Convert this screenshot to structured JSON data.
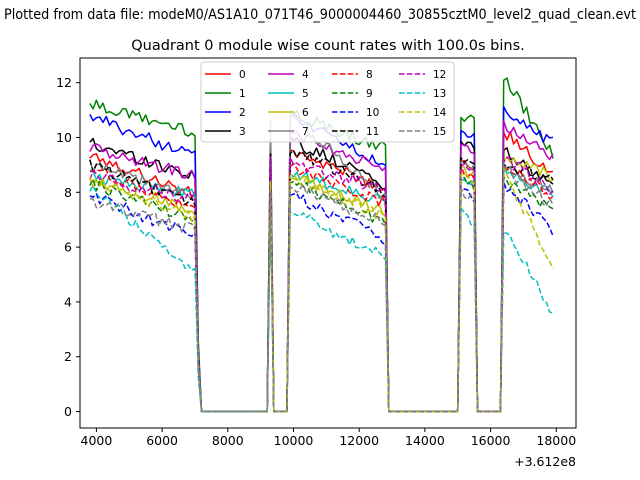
{
  "chart_data": {
    "type": "line",
    "suptitle": "Plotted from data file: modeM0/AS1A10_071T46_9000004460_30855cztM0_level2_quad_clean.evt",
    "title": "Quadrant 0 module wise count rates with 100.0s bins.",
    "xlabel": "",
    "ylabel": "",
    "x_offset_label": "+3.612e8",
    "xlim": [
      3500,
      18600
    ],
    "ylim": [
      -0.6,
      12.9
    ],
    "x_ticks": [
      4000,
      6000,
      8000,
      10000,
      12000,
      14000,
      16000,
      18000
    ],
    "x_tick_labels": [
      "4000",
      "6000",
      "8000",
      "10000",
      "12000",
      "14000",
      "16000",
      "18000"
    ],
    "y_ticks": [
      0,
      2,
      4,
      6,
      8,
      10,
      12
    ],
    "y_tick_labels": [
      "0",
      "2",
      "4",
      "6",
      "8",
      "10",
      "12"
    ],
    "legend_position": "upper-center",
    "segments": [
      {
        "start": 3800,
        "end": 7000
      },
      {
        "start": 9300,
        "end": 9300
      },
      {
        "start": 9900,
        "end": 12800
      },
      {
        "start": 15100,
        "end": 15500
      },
      {
        "start": 16400,
        "end": 17900
      }
    ],
    "zero_intervals": [
      [
        7200,
        9200
      ],
      [
        9500,
        9800
      ],
      [
        12900,
        15000
      ],
      [
        15600,
        16300
      ]
    ],
    "series": [
      {
        "name": "0",
        "color": "#ff0000",
        "dash": "solid",
        "levels": {
          "seg1": [
            9.4,
            7.9
          ],
          "spike": 9.6,
          "seg2": [
            9.4,
            8.2
          ],
          "seg3": [
            9.2,
            8.9
          ],
          "seg4": [
            10.2,
            8.6
          ]
        }
      },
      {
        "name": "1",
        "color": "#008000",
        "dash": "solid",
        "levels": {
          "seg1": [
            11.2,
            10.2
          ],
          "spike": 10.5,
          "seg2": [
            10.9,
            9.6
          ],
          "seg3": [
            10.8,
            10.6
          ],
          "seg4": [
            12.3,
            9.3
          ]
        }
      },
      {
        "name": "2",
        "color": "#0000ff",
        "dash": "solid",
        "levels": {
          "seg1": [
            10.8,
            9.3
          ],
          "spike": 10.0,
          "seg2": [
            10.8,
            9.0
          ],
          "seg3": [
            10.2,
            10.0
          ],
          "seg4": [
            10.9,
            9.8
          ]
        }
      },
      {
        "name": "3",
        "color": "#000000",
        "dash": "solid",
        "levels": {
          "seg1": [
            9.8,
            8.6
          ],
          "spike": 9.8,
          "seg2": [
            9.9,
            8.3
          ],
          "seg3": [
            9.8,
            9.6
          ],
          "seg4": [
            9.5,
            8.2
          ]
        }
      },
      {
        "name": "4",
        "color": "#bf00bf",
        "dash": "solid",
        "levels": {
          "seg1": [
            9.6,
            8.6
          ],
          "spike": 9.7,
          "seg2": [
            10.2,
            8.8
          ],
          "seg3": [
            9.9,
            9.4
          ],
          "seg4": [
            10.5,
            9.2
          ]
        }
      },
      {
        "name": "5",
        "color": "#00bfbf",
        "dash": "solid",
        "levels": {
          "seg1": [
            8.6,
            7.9
          ],
          "spike": 9.6,
          "seg2": [
            8.7,
            7.7
          ],
          "seg3": [
            8.5,
            8.4
          ],
          "seg4": [
            8.8,
            7.9
          ]
        }
      },
      {
        "name": "6",
        "color": "#bfbf00",
        "dash": "solid",
        "levels": {
          "seg1": [
            8.4,
            7.4
          ],
          "spike": 9.3,
          "seg2": [
            8.6,
            7.3
          ],
          "seg3": [
            8.8,
            8.6
          ],
          "seg4": [
            9.2,
            8.6
          ]
        }
      },
      {
        "name": "7",
        "color": "#808080",
        "dash": "solid",
        "levels": {
          "seg1": [
            9.0,
            7.8
          ],
          "spike": 10.6,
          "seg2": [
            10.8,
            7.8
          ],
          "seg3": [
            9.0,
            8.9
          ],
          "seg4": [
            9.0,
            8.0
          ]
        }
      },
      {
        "name": "8",
        "color": "#ff0000",
        "dash": "dashed",
        "levels": {
          "seg1": [
            8.9,
            7.3
          ],
          "spike": 8.7,
          "seg2": [
            8.9,
            7.6
          ],
          "seg3": [
            8.9,
            8.4
          ],
          "seg4": [
            9.0,
            7.9
          ]
        }
      },
      {
        "name": "9",
        "color": "#008000",
        "dash": "dashed",
        "levels": {
          "seg1": [
            8.3,
            7.0
          ],
          "spike": 8.4,
          "seg2": [
            8.4,
            6.9
          ],
          "seg3": [
            8.5,
            8.2
          ],
          "seg4": [
            8.4,
            7.4
          ]
        }
      },
      {
        "name": "10",
        "color": "#0000ff",
        "dash": "dashed",
        "levels": {
          "seg1": [
            7.9,
            6.4
          ],
          "spike": 8.2,
          "seg2": [
            7.9,
            6.3
          ],
          "seg3": [
            8.1,
            7.8
          ],
          "seg4": [
            8.3,
            6.6
          ]
        }
      },
      {
        "name": "11",
        "color": "#000000",
        "dash": "dashed",
        "levels": {
          "seg1": [
            9.0,
            7.6
          ],
          "spike": 9.4,
          "seg2": [
            9.6,
            8.0
          ],
          "seg3": [
            9.3,
            9.1
          ],
          "seg4": [
            9.1,
            8.4
          ]
        }
      },
      {
        "name": "12",
        "color": "#bf00bf",
        "dash": "dashed",
        "levels": {
          "seg1": [
            8.6,
            7.7
          ],
          "spike": 9.3,
          "seg2": [
            9.1,
            8.1
          ],
          "seg3": [
            9.1,
            8.7
          ],
          "seg4": [
            9.3,
            8.0
          ]
        }
      },
      {
        "name": "13",
        "color": "#00bfbf",
        "dash": "dashed",
        "levels": {
          "seg1": [
            8.2,
            5.0
          ],
          "spike": 7.6,
          "seg2": [
            7.3,
            5.7
          ],
          "seg3": [
            7.3,
            6.8
          ],
          "seg4": [
            6.7,
            3.6
          ]
        }
      },
      {
        "name": "14",
        "color": "#bfbf00",
        "dash": "dashed",
        "levels": {
          "seg1": [
            8.4,
            7.1
          ],
          "spike": 8.4,
          "seg2": [
            8.6,
            7.1
          ],
          "seg3": [
            8.6,
            8.3
          ],
          "seg4": [
            8.7,
            5.4
          ]
        }
      },
      {
        "name": "15",
        "color": "#808080",
        "dash": "dashed",
        "levels": {
          "seg1": [
            7.7,
            6.6
          ],
          "spike": 8.0,
          "seg2": [
            8.3,
            6.9
          ],
          "seg3": [
            8.0,
            7.8
          ],
          "seg4": [
            8.9,
            7.5
          ]
        }
      }
    ]
  }
}
